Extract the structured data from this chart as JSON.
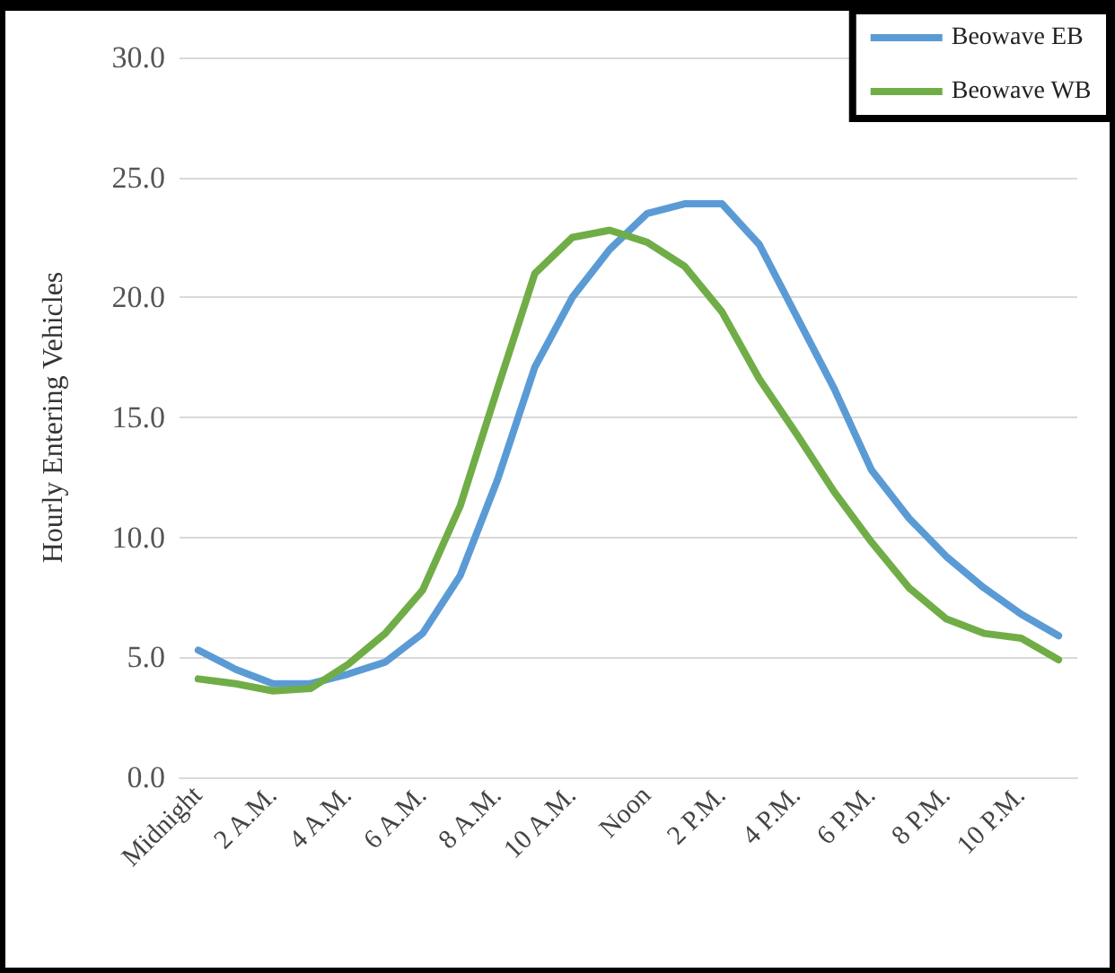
{
  "chart_data": {
    "type": "line",
    "ylabel": "Hourly Entering Vehicles",
    "categories": [
      "Midnight",
      null,
      "2 A.M.",
      null,
      "4 A.M.",
      null,
      "6 A.M.",
      null,
      "8 A.M.",
      null,
      "10 A.M.",
      null,
      "Noon",
      null,
      "2 P.M.",
      null,
      "4 P.M.",
      null,
      "6 P.M.",
      null,
      "8 P.M.",
      null,
      "10 P.M.",
      null
    ],
    "series": [
      {
        "name": "Beowave EB",
        "color": "#5b9bd5",
        "values": [
          5.3,
          4.5,
          3.9,
          3.9,
          4.3,
          4.8,
          6.0,
          8.4,
          12.4,
          17.1,
          20.0,
          22.0,
          23.5,
          23.9,
          23.9,
          22.2,
          19.2,
          16.2,
          12.8,
          10.8,
          9.2,
          7.9,
          6.8,
          5.9
        ]
      },
      {
        "name": "Beowave WB",
        "color": "#70ad47",
        "values": [
          4.1,
          3.9,
          3.6,
          3.7,
          4.7,
          6.0,
          7.8,
          11.3,
          16.2,
          21.0,
          22.5,
          22.8,
          22.3,
          21.3,
          19.4,
          16.6,
          14.3,
          11.9,
          9.8,
          7.9,
          6.6,
          6.0,
          5.8,
          4.9
        ]
      }
    ],
    "ylim": [
      0,
      30
    ],
    "yticks": [
      {
        "value": 0,
        "label": "0.0"
      },
      {
        "value": 5,
        "label": "5.0"
      },
      {
        "value": 10,
        "label": "10.0"
      },
      {
        "value": 15,
        "label": "15.0"
      },
      {
        "value": 20,
        "label": "20.0"
      },
      {
        "value": 25,
        "label": "25.0"
      },
      {
        "value": 30,
        "label": "30.0"
      }
    ],
    "grid": "y",
    "legend": "top right",
    "marker": "none",
    "line_style": "solid"
  }
}
